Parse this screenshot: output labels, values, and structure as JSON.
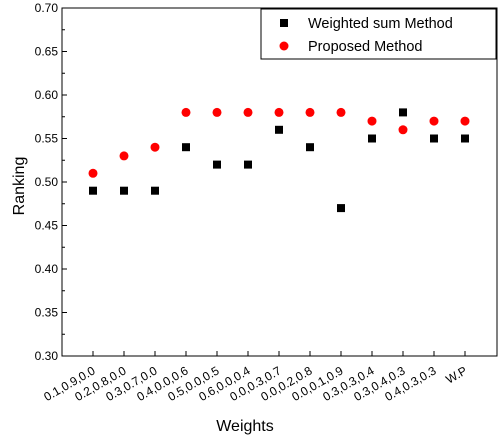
{
  "chart_data": {
    "type": "scatter",
    "title": "",
    "xlabel": "Weights",
    "ylabel": "Ranking",
    "categories": [
      "0.1,0.9,0.0",
      "0.2,0.8,0.0",
      "0.3,0.7,0.0",
      "0.4,0.0,0.6",
      "0.5,0.0,0.5",
      "0.6,0.0,0.4",
      "0.0,0.3,0.7",
      "0.0,0.2,0.8",
      "0.0,0.1,0.9",
      "0.3,0.3,0.4",
      "0.3,0.4,0.3",
      "0.4,0.3,0.3",
      "W.P"
    ],
    "ylim": [
      0.3,
      0.7
    ],
    "yticks": [
      "0.30",
      "0.35",
      "0.40",
      "0.45",
      "0.50",
      "0.55",
      "0.60",
      "0.65",
      "0.70"
    ],
    "grid": false,
    "legend_position": "top-right",
    "series": [
      {
        "name": "Weighted sum Method",
        "marker": "square",
        "color": "#000000",
        "values": [
          0.49,
          0.49,
          0.49,
          0.54,
          0.52,
          0.52,
          0.56,
          0.54,
          0.47,
          0.55,
          0.58,
          0.55,
          0.55
        ]
      },
      {
        "name": "Proposed Method",
        "marker": "circle",
        "color": "#ff0000",
        "values": [
          0.51,
          0.53,
          0.54,
          0.58,
          0.58,
          0.58,
          0.58,
          0.58,
          0.58,
          0.57,
          0.56,
          0.57,
          0.57
        ]
      }
    ]
  }
}
